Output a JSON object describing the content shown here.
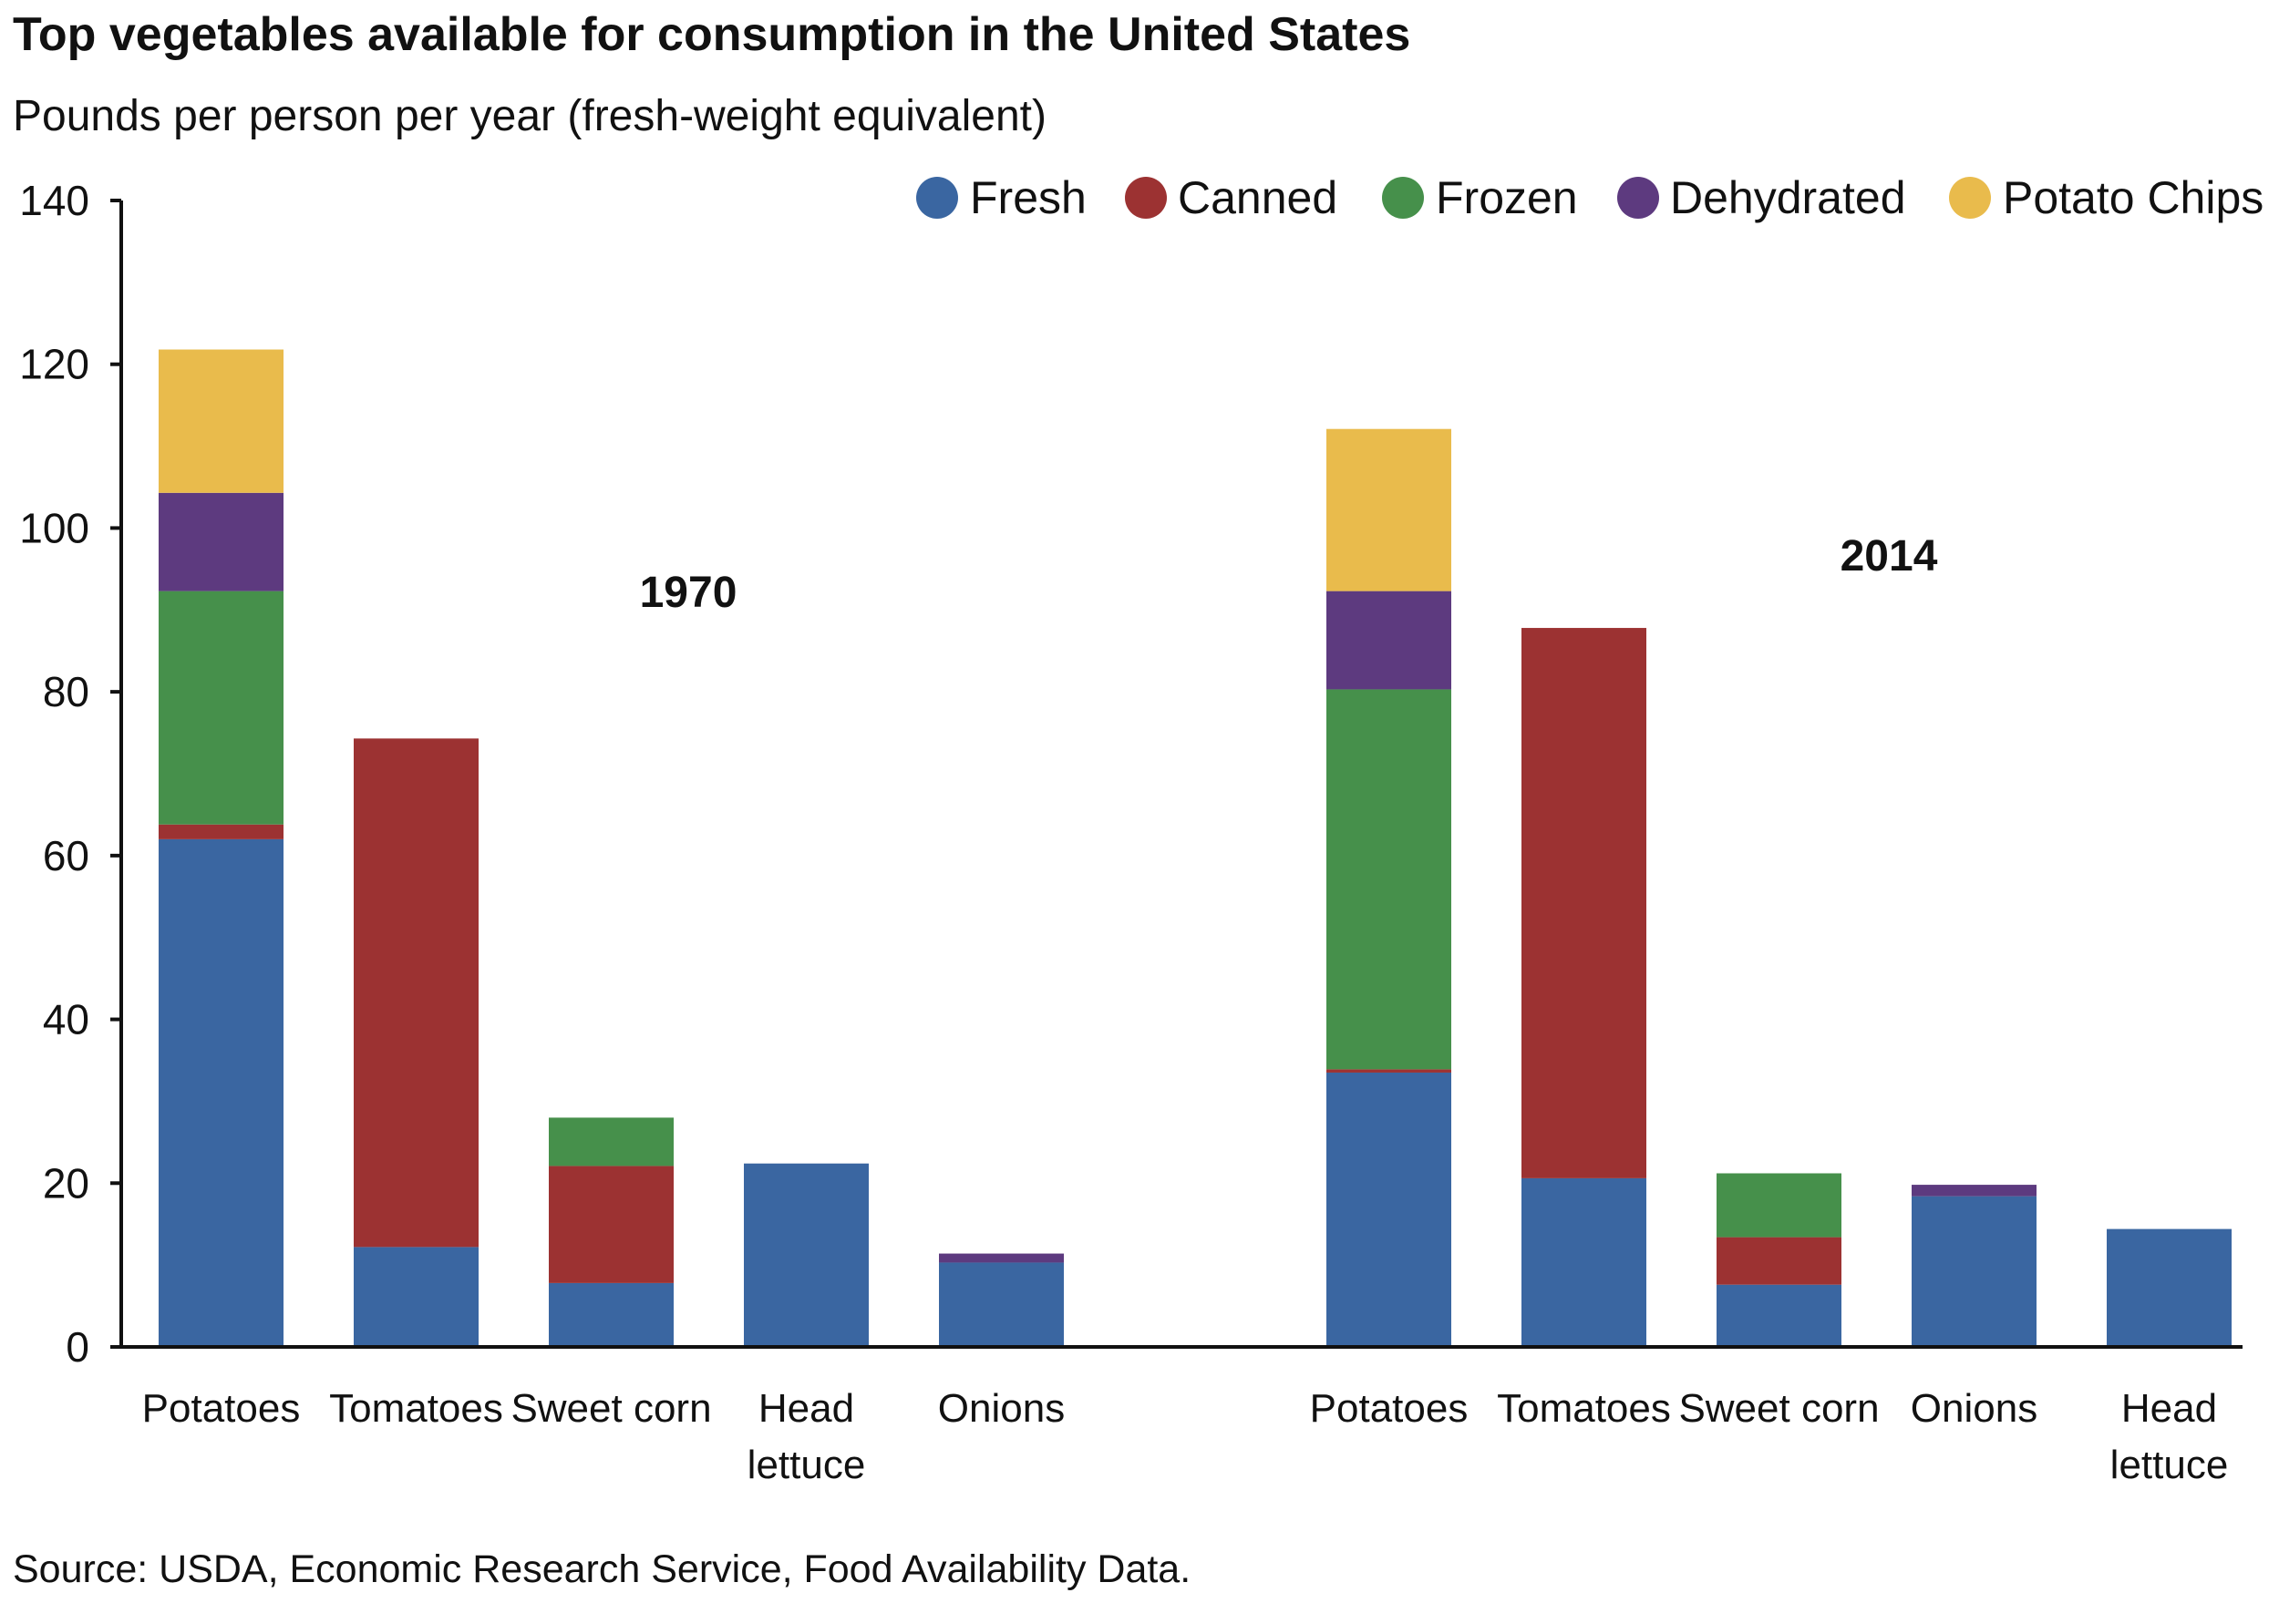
{
  "header": {
    "title": "Top vegetables available for consumption in the United States",
    "subtitle": "Pounds per person per year (fresh-weight equivalent)"
  },
  "footer": {
    "source": "Source: USDA, Economic Research Service, Food Availability Data."
  },
  "chart_data": {
    "type": "bar",
    "stacked": true,
    "title": "Top vegetables available for consumption in the United States",
    "ylabel": "Pounds per person per year (fresh-weight equivalent)",
    "ylim": [
      0,
      140
    ],
    "yticks": [
      0,
      20,
      40,
      60,
      80,
      100,
      120,
      140
    ],
    "grid": false,
    "legend_position": "top-right",
    "series": [
      {
        "name": "Fresh",
        "color": "#3A66A1"
      },
      {
        "name": "Canned",
        "color": "#9C3232"
      },
      {
        "name": "Frozen",
        "color": "#46904B"
      },
      {
        "name": "Dehydrated",
        "color": "#5D3A7F"
      },
      {
        "name": "Potato Chips",
        "color": "#E9BB4C"
      }
    ],
    "groups": [
      {
        "label": "1970",
        "categories": [
          {
            "name": "Potatoes",
            "values": {
              "Fresh": 62,
              "Canned": 1.8,
              "Frozen": 28.5,
              "Dehydrated": 12,
              "Potato Chips": 17.5
            }
          },
          {
            "name": "Tomatoes",
            "values": {
              "Fresh": 12.2,
              "Canned": 62.1,
              "Frozen": 0,
              "Dehydrated": 0,
              "Potato Chips": 0
            }
          },
          {
            "name": "Sweet corn",
            "values": {
              "Fresh": 7.8,
              "Canned": 14.3,
              "Frozen": 5.9,
              "Dehydrated": 0,
              "Potato Chips": 0
            }
          },
          {
            "name": "Head lettuce",
            "values": {
              "Fresh": 22.4,
              "Canned": 0,
              "Frozen": 0,
              "Dehydrated": 0,
              "Potato Chips": 0
            }
          },
          {
            "name": "Onions",
            "values": {
              "Fresh": 10.3,
              "Canned": 0,
              "Frozen": 0,
              "Dehydrated": 1.1,
              "Potato Chips": 0
            }
          }
        ]
      },
      {
        "label": "2014",
        "categories": [
          {
            "name": "Potatoes",
            "values": {
              "Fresh": 33.5,
              "Canned": 0.4,
              "Frozen": 46.4,
              "Dehydrated": 12,
              "Potato Chips": 19.8
            }
          },
          {
            "name": "Tomatoes",
            "values": {
              "Fresh": 20.6,
              "Canned": 67.2,
              "Frozen": 0,
              "Dehydrated": 0,
              "Potato Chips": 0
            }
          },
          {
            "name": "Sweet corn",
            "values": {
              "Fresh": 7.6,
              "Canned": 5.8,
              "Frozen": 7.8,
              "Dehydrated": 0,
              "Potato Chips": 0
            }
          },
          {
            "name": "Onions",
            "values": {
              "Fresh": 18.4,
              "Canned": 0,
              "Frozen": 0,
              "Dehydrated": 1.4,
              "Potato Chips": 0
            }
          },
          {
            "name": "Head lettuce",
            "values": {
              "Fresh": 14.4,
              "Canned": 0,
              "Frozen": 0,
              "Dehydrated": 0,
              "Potato Chips": 0
            }
          }
        ]
      }
    ]
  }
}
